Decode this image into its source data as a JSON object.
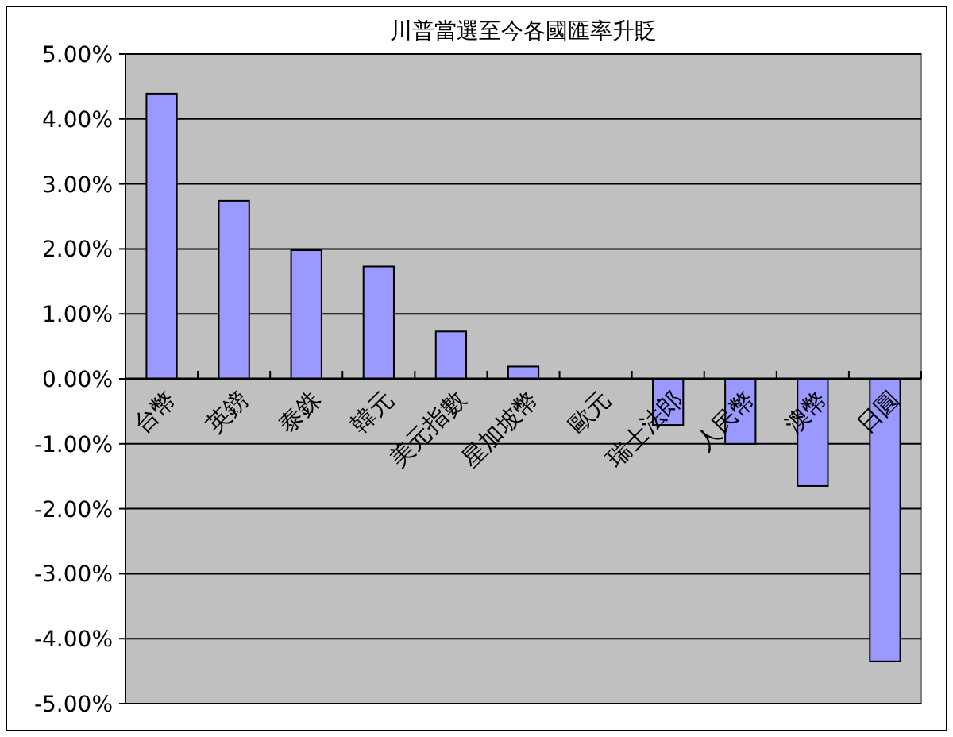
{
  "chart_data": {
    "type": "bar",
    "title": "川普當選至今各國匯率升貶",
    "categories": [
      "台幣",
      "英鎊",
      "泰銖",
      "韓元",
      "美元指數",
      "星加坡幣",
      "歐元",
      "瑞士法郎",
      "人民幣",
      "澳幣",
      "日圓"
    ],
    "values": [
      4.39,
      2.74,
      1.98,
      1.73,
      0.73,
      0.19,
      0,
      -0.71,
      -1.0,
      -1.65,
      -4.35
    ],
    "color": "#9999ff",
    "ylim": [
      -5,
      5
    ],
    "yticks": [
      {
        "value": 5,
        "label": "5.00%"
      },
      {
        "value": 4,
        "label": "4.00%"
      },
      {
        "value": 3,
        "label": "3.00%"
      },
      {
        "value": 2,
        "label": "2.00%"
      },
      {
        "value": 1,
        "label": "1.00%"
      },
      {
        "value": 0,
        "label": "0.00%"
      },
      {
        "value": -1,
        "label": "-1.00%"
      },
      {
        "value": -2,
        "label": "-2.00%"
      },
      {
        "value": -3,
        "label": "-3.00%"
      },
      {
        "value": -4,
        "label": "-4.00%"
      },
      {
        "value": -5,
        "label": "-5.00%"
      }
    ],
    "grid": "y"
  }
}
